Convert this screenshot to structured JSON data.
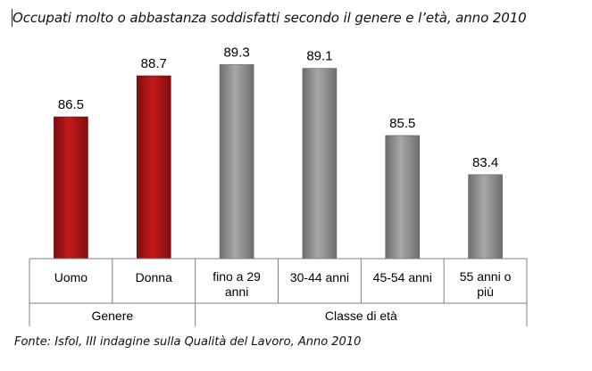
{
  "chart_data": {
    "type": "bar",
    "title": "Occupati molto o abbastanza soddisfatti secondo il genere e l’età, anno 2010",
    "source": "Fonte: Isfol, III indagine sulla Qualità del Lavoro, Anno 2010",
    "categories": [
      [
        "Uomo"
      ],
      [
        "Donna"
      ],
      [
        "fino a 29",
        "anni"
      ],
      [
        "30-44 anni"
      ],
      [
        "45-54 anni"
      ],
      [
        "55 anni o",
        "più"
      ]
    ],
    "values": [
      86.5,
      88.7,
      89.3,
      89.1,
      85.5,
      83.4
    ],
    "value_labels": [
      "86.5",
      "88.7",
      "89.3",
      "89.1",
      "85.5",
      "83.4"
    ],
    "groups": [
      {
        "label": "Genere",
        "span": [
          0,
          1
        ],
        "color": "#b01414"
      },
      {
        "label": "Classe di età",
        "span": [
          2,
          5
        ],
        "color": "#8c8c8c"
      }
    ],
    "ylim": [
      78.9,
      89.8
    ],
    "grid": false,
    "legend": "none"
  }
}
